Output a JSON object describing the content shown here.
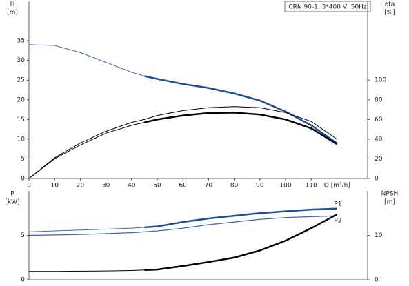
{
  "chart_data": [
    {
      "type": "line",
      "title": "CRN 90-1, 3*400 V, 50Hz",
      "y_label": "H",
      "y_unit": "[m]",
      "y2_label": "eta",
      "y2_unit": "[%]",
      "x_label": "Q [m³/h]",
      "x": [
        0,
        10,
        20,
        30,
        40,
        45,
        50,
        60,
        70,
        80,
        90,
        100,
        110,
        120
      ],
      "xlim": [
        0,
        132
      ],
      "xticks": [
        0,
        10,
        20,
        30,
        40,
        50,
        60,
        70,
        80,
        90,
        100,
        110
      ],
      "ylim": [
        0,
        45
      ],
      "yticks": [
        0,
        5,
        10,
        15,
        20,
        25,
        30,
        35
      ],
      "y2lim": [
        0,
        180
      ],
      "y2ticks": [
        0,
        20,
        40,
        60,
        80,
        100
      ],
      "series": [
        {
          "color": "#4a66a6",
          "width": 1,
          "values": [
            34,
            33.8,
            32,
            29.5,
            27,
            26,
            25.3,
            24,
            23,
            21.6,
            19.8,
            17,
            13.5,
            9
          ]
        },
        {
          "color": "#1f4e99",
          "width": 2.5,
          "values": [
            null,
            null,
            null,
            null,
            null,
            26,
            25.3,
            24,
            23,
            21.6,
            19.8,
            17,
            13.5,
            9
          ]
        },
        {
          "color": "#000000",
          "width": 1,
          "axis": "y2",
          "values": [
            0,
            21,
            36,
            48,
            57,
            60,
            64,
            69,
            72,
            73,
            72,
            67,
            58,
            40
          ]
        },
        {
          "color": "#000000",
          "width": 1,
          "axis": "y2",
          "values": [
            0,
            20,
            34,
            46,
            54,
            57,
            60,
            64,
            66.5,
            67,
            65,
            60,
            51,
            35
          ]
        },
        {
          "color": "#000000",
          "width": 2.5,
          "axis": "y2",
          "values": [
            null,
            null,
            null,
            null,
            null,
            57,
            60,
            64,
            66.5,
            67,
            65,
            60,
            51,
            35
          ]
        }
      ]
    },
    {
      "type": "line",
      "y_label": "P",
      "y_unit": "[kW]",
      "y2_label": "NPSH",
      "y2_unit": "[m]",
      "x": [
        0,
        10,
        20,
        30,
        40,
        45,
        50,
        60,
        70,
        80,
        90,
        100,
        110,
        120
      ],
      "xlim": [
        0,
        132
      ],
      "ylim": [
        0,
        10
      ],
      "yticks": [
        0,
        5
      ],
      "y2lim": [
        0,
        20
      ],
      "y2ticks": [
        0,
        10
      ],
      "series": [
        {
          "name": "P1",
          "color": "#4a66a6",
          "width": 1,
          "values": [
            5.4,
            5.5,
            5.6,
            5.7,
            5.8,
            5.9,
            6.0,
            6.5,
            6.9,
            7.2,
            7.5,
            7.7,
            7.9,
            8.0
          ]
        },
        {
          "color": "#1f4e99",
          "width": 2.5,
          "values": [
            null,
            null,
            null,
            null,
            null,
            5.9,
            6.0,
            6.5,
            6.9,
            7.2,
            7.5,
            7.7,
            7.9,
            8.0
          ]
        },
        {
          "name": "P2",
          "color": "#3a5ea8",
          "width": 1.2,
          "values": [
            5.0,
            5.05,
            5.1,
            5.2,
            5.3,
            5.4,
            5.5,
            5.8,
            6.2,
            6.5,
            6.8,
            7.0,
            7.1,
            7.2
          ]
        },
        {
          "color": "#000000",
          "width": 1,
          "axis": "y2",
          "values": [
            1.9,
            1.9,
            1.95,
            2.0,
            2.1,
            2.2,
            2.3,
            3.1,
            4,
            5,
            6.6,
            8.8,
            11.6,
            14.7
          ]
        },
        {
          "color": "#000000",
          "width": 2.5,
          "axis": "y2",
          "values": [
            null,
            null,
            null,
            null,
            null,
            2.2,
            2.3,
            3.1,
            4,
            5,
            6.6,
            8.8,
            11.6,
            14.7
          ]
        }
      ]
    }
  ]
}
